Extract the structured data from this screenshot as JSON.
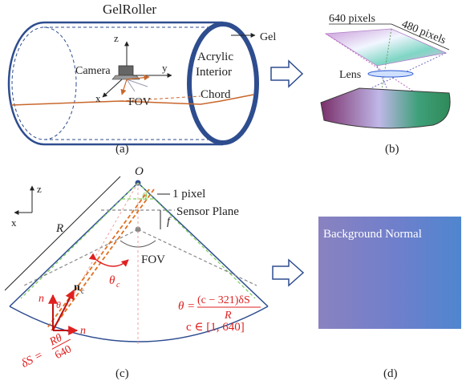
{
  "panel_a": {
    "title": "GelRoller",
    "gel": "Gel",
    "acrylic_line1": "Acrylic",
    "acrylic_line2": "Interior",
    "camera": "Camera",
    "fov": "FOV",
    "chord": "Chord",
    "axis_x": "x",
    "axis_y": "y",
    "axis_z": "z",
    "caption": "(a)"
  },
  "panel_b": {
    "width_label": "640 pixels",
    "height_label": "480 pixels",
    "lens": "Lens",
    "caption": "(b)"
  },
  "panel_c": {
    "origin": "O",
    "axis_z": "z",
    "axis_x": "x",
    "radius": "R",
    "one_pixel": "1 pixel",
    "f": "f",
    "sensor_plane": "Sensor Plane",
    "fov": "FOV",
    "theta": "θ",
    "theta_c": "θ",
    "theta_c_sub": "c",
    "n": "n",
    "n_sub": "c",
    "n_z_label": "n",
    "n_x_label": "n",
    "formula_lhs": "θ",
    "formula_num": "(c − 321)δS",
    "formula_den": "R",
    "formula_range": "c ∈ [1, 640]",
    "ds_lhs": "δS =",
    "ds_num": "Rθ",
    "ds_den": "640",
    "caption": "(c)"
  },
  "panel_d": {
    "label": "Background Normal",
    "caption": "(d)"
  },
  "colors": {
    "roller_blue": "#2e4d8f",
    "chord_orange": "#c8662a",
    "formula_red": "#e02020",
    "fov_green": "#7ccf5a"
  }
}
